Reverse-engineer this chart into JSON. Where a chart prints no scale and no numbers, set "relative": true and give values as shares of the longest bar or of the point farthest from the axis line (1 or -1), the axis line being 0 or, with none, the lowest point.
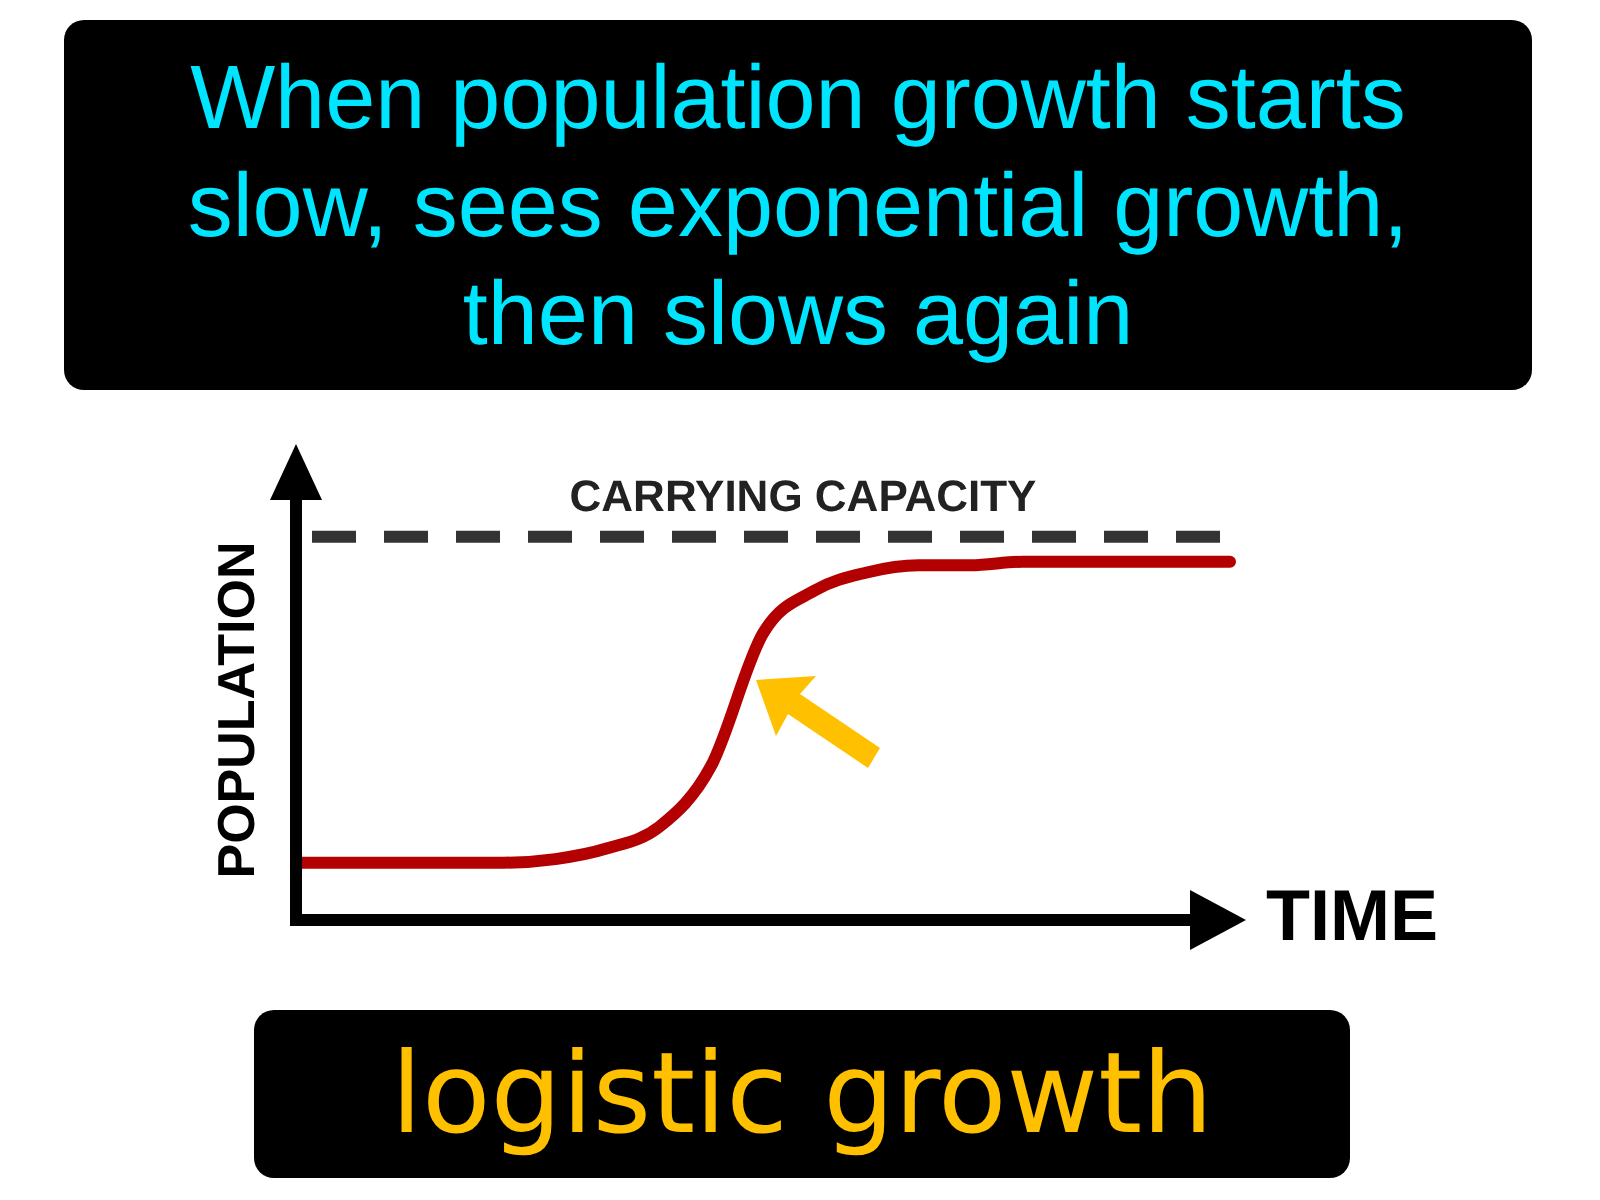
{
  "chart_data": {
    "type": "line",
    "title": "When population growth starts slow, sees exponential growth, then slows again",
    "annotations": [
      "logistic growth"
    ],
    "xlabel": "TIME",
    "ylabel": "POPULATION",
    "relative": true,
    "legend": false,
    "marker": "none",
    "line_style": "solid",
    "categories": [
      null,
      null,
      null,
      null,
      null,
      null,
      null,
      null,
      null,
      null,
      null,
      null,
      null,
      null,
      null,
      null,
      null,
      null,
      null
    ],
    "series": [
      {
        "color": "#b30000",
        "values": [
          0.16,
          0.16,
          0.16,
          0.16,
          0.16,
          0.17,
          0.2,
          0.26,
          0.43,
          0.8,
          0.92,
          0.97,
          0.99,
          0.99,
          1,
          1,
          1,
          1,
          1
        ]
      }
    ],
    "ref_lines": [
      {
        "axis": "y",
        "value": 1.07,
        "label": "CARRYING CAPACITY",
        "color": "#333333",
        "line_style": "dashed"
      }
    ]
  }
}
